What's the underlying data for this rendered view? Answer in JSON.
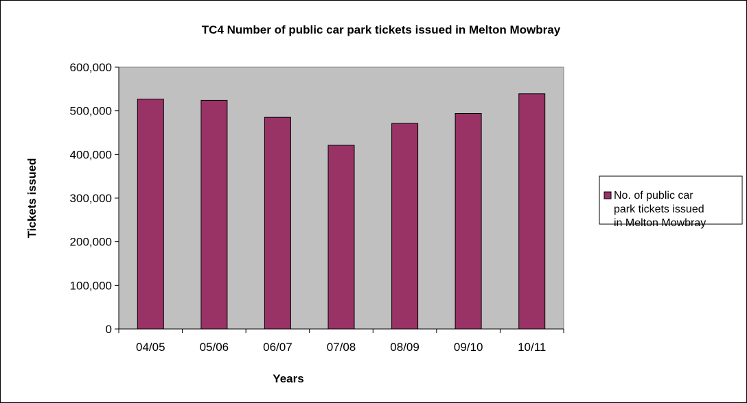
{
  "chart_data": {
    "type": "bar",
    "title": "TC4 Number of public car park tickets issued in Melton Mowbray",
    "xlabel": "Years",
    "ylabel": "Tickets issued",
    "categories": [
      "04/05",
      "05/06",
      "06/07",
      "07/08",
      "08/09",
      "09/10",
      "10/11"
    ],
    "series": [
      {
        "name": "No. of public car park tickets issued in Melton Mowbray",
        "legend_lines": [
          "No. of public car",
          "park tickets issued",
          "in Melton Mowbray"
        ],
        "color": "#993366",
        "values": [
          527000,
          524000,
          485000,
          421000,
          471000,
          494000,
          539000
        ]
      }
    ],
    "yticks": [
      "0",
      "100,000",
      "200,000",
      "300,000",
      "400,000",
      "500,000",
      "600,000"
    ],
    "ylim": [
      0,
      600000
    ],
    "plot_background": "#C0C0C0",
    "legend_position": "right",
    "grid": false
  }
}
